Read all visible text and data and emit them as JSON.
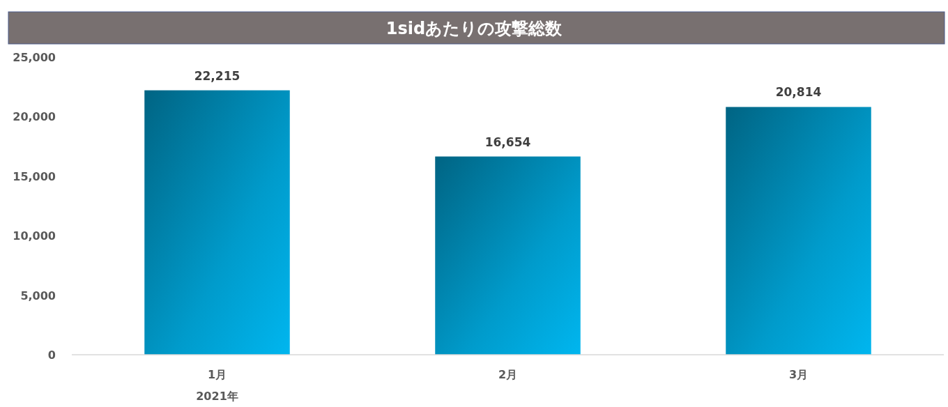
{
  "chart_data": {
    "type": "bar",
    "title": "1sidあたりの攻撃総数",
    "categories": [
      "1月",
      "2月",
      "3月"
    ],
    "series": [
      {
        "color": "#00b6ef",
        "values": [
          22215,
          16654,
          20814
        ]
      }
    ],
    "ylim": [
      0,
      25000
    ],
    "yticks": [
      {
        "value": 0,
        "label": "0"
      },
      {
        "value": 5000,
        "label": "5,000"
      },
      {
        "value": 10000,
        "label": "10,000"
      },
      {
        "value": 15000,
        "label": "15,000"
      },
      {
        "value": 20000,
        "label": "20,000"
      },
      {
        "value": 25000,
        "label": "25,000"
      }
    ],
    "value_labels": [
      "22,215",
      "16,654",
      "20,814"
    ],
    "annotations": [
      "2021年"
    ],
    "grid": false
  }
}
